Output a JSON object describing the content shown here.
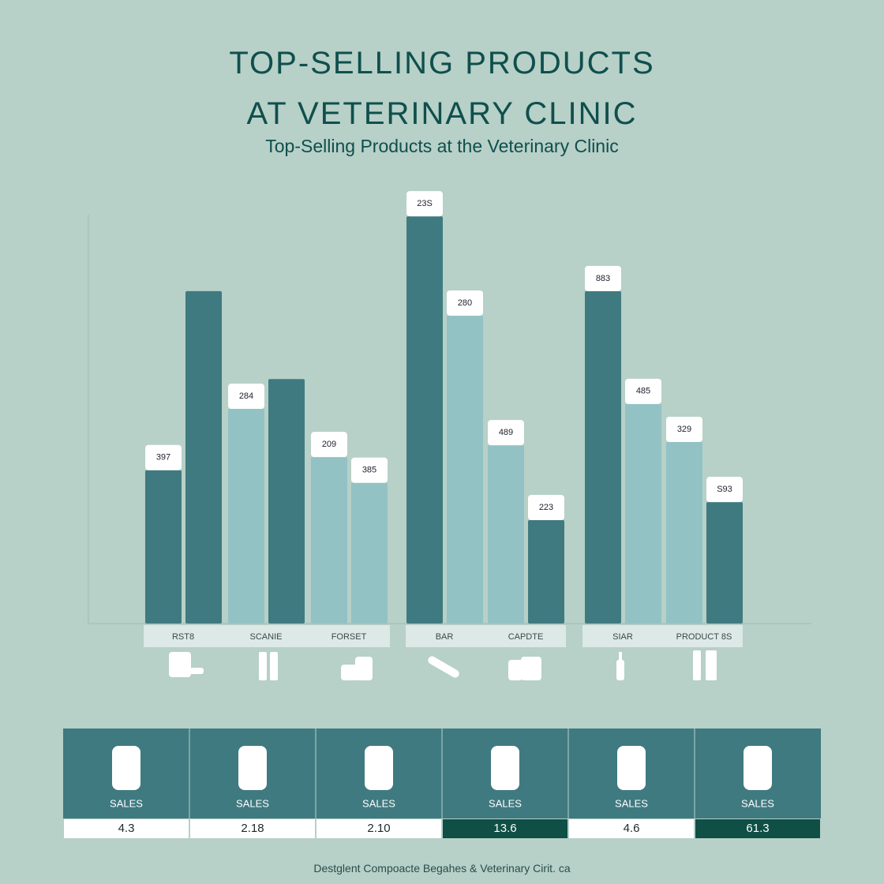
{
  "chart_data": {
    "type": "bar",
    "title": "TOP-SELLING PRODUCTS\nAT VETERINARY CLINIC",
    "subtitle": "Top-Selling Products at the Veterinary Clinic",
    "categories": [
      "RST8",
      "SCANIE",
      "FORSET",
      "BAR",
      "CAPDTE",
      "SIAR",
      "PRODUCT 8S"
    ],
    "ylim": [
      0,
      10
    ],
    "series": [
      {
        "colors": [
          "#3f7a80",
          "#93c2c4",
          "#93c2c4",
          "#3f7a80",
          "#93c2c4",
          "#3f7a80",
          "#93c2c4"
        ],
        "values": [
          3.75,
          5.25,
          4.07,
          9.96,
          4.36,
          8.13,
          4.44
        ],
        "bar_labels": [
          "397",
          "284",
          "209",
          "23S",
          "489",
          "883",
          "329"
        ]
      },
      {
        "colors": [
          "#3f7a80",
          "#3f7a80",
          "#93c2c4",
          "#93c2c4",
          "#3f7a80",
          "#93c2c4",
          "#3f7a80"
        ],
        "values": [
          8.13,
          5.98,
          3.44,
          7.53,
          2.53,
          5.37,
          2.97
        ],
        "bar_labels": [
          null,
          null,
          "385",
          "280",
          "223",
          "485",
          "S93"
        ]
      }
    ]
  },
  "table": {
    "cells": [
      {
        "label": "SALES",
        "value": "4.3",
        "highlight": false
      },
      {
        "label": "SALES",
        "value": "2.18",
        "highlight": false
      },
      {
        "label": "SALES",
        "value": "2.10",
        "highlight": false
      },
      {
        "label": "SALES",
        "value": "13.6",
        "highlight": true
      },
      {
        "label": "SALES",
        "value": "4.6",
        "highlight": false
      },
      {
        "label": "SALES",
        "value": "61.3",
        "highlight": true
      }
    ]
  },
  "footer": "Destglent Compoacte Begahes & Veterinary Cirit. ca"
}
